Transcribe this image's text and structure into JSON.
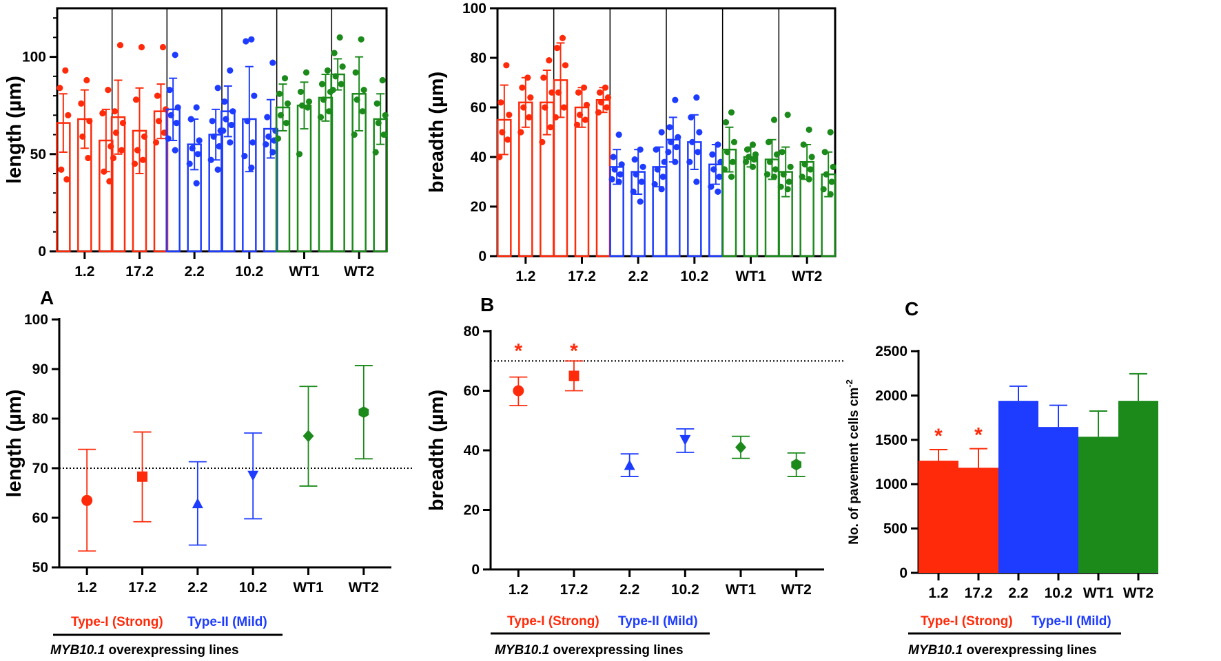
{
  "colors": {
    "type1": "#ff2a0a",
    "type2": "#1e3cff",
    "wt": "#1b8a1b",
    "axis": "#000000"
  },
  "categories": [
    "1.2",
    "17.2",
    "2.2",
    "10.2",
    "WT1",
    "WT2"
  ],
  "panel_labels": {
    "a": "A",
    "b": "B",
    "c": "C"
  },
  "legend": {
    "type1": "Type-I (Strong)",
    "type2": "Type-II (Mild)",
    "myb_gene": "MYB10.1",
    "myb_rest": " overexpressing lines"
  },
  "chart_data": [
    {
      "id": "top_length",
      "type": "bar",
      "ylabel": "length (µm)",
      "ylim": [
        0,
        125
      ],
      "yticks": [
        0,
        50,
        100
      ],
      "categories": [
        "1.2",
        "17.2",
        "2.2",
        "10.2",
        "WT1",
        "WT2"
      ],
      "groups": [
        {
          "color": "type1",
          "bars": [
            {
              "mean": 66,
              "sd": 15,
              "points": [
                93,
                84,
                70,
                42,
                37
              ]
            },
            {
              "mean": 68,
              "sd": 15,
              "points": [
                88,
                76,
                67,
                59,
                48
              ]
            },
            {
              "mean": 57,
              "sd": 16,
              "points": [
                83,
                71,
                54,
                41,
                36
              ]
            }
          ]
        },
        {
          "color": "type1",
          "bars": [
            {
              "mean": 69,
              "sd": 19,
              "points": [
                106,
                72,
                66,
                61,
                52,
                48
              ]
            },
            {
              "mean": 62,
              "sd": 22,
              "points": [
                105,
                78,
                59,
                52,
                47,
                45
              ]
            },
            {
              "mean": 72,
              "sd": 14,
              "points": [
                105,
                80,
                73,
                67,
                61,
                56
              ]
            }
          ]
        },
        {
          "color": "type2",
          "bars": [
            {
              "mean": 73,
              "sd": 16,
              "points": [
                101,
                83,
                74,
                70,
                66,
                58,
                52
              ]
            },
            {
              "mean": 55,
              "sd": 13,
              "points": [
                74,
                68,
                57,
                53,
                50,
                45,
                35
              ]
            },
            {
              "mean": 60,
              "sd": 13,
              "points": [
                84,
                67,
                62,
                59,
                54,
                47,
                42
              ]
            }
          ]
        },
        {
          "color": "type2",
          "bars": [
            {
              "mean": 72,
              "sd": 13,
              "points": [
                93,
                77,
                72,
                68,
                65,
                62,
                56
              ]
            },
            {
              "mean": 68,
              "sd": 27,
              "points": [
                109,
                108,
                80,
                67,
                56,
                49,
                43
              ]
            },
            {
              "mean": 63,
              "sd": 15,
              "points": [
                97,
                69,
                62,
                59,
                57,
                55,
                51
              ]
            }
          ]
        },
        {
          "color": "wt",
          "bars": [
            {
              "mean": 74,
              "sd": 12,
              "points": [
                89,
                81,
                76,
                70,
                66,
                58
              ]
            },
            {
              "mean": 75,
              "sd": 12,
              "points": [
                92,
                82,
                77,
                75,
                74,
                50
              ]
            },
            {
              "mean": 79,
              "sd": 12,
              "points": [
                93,
                86,
                82,
                78,
                72,
                69
              ]
            }
          ]
        },
        {
          "color": "wt",
          "bars": [
            {
              "mean": 91,
              "sd": 8,
              "points": [
                110,
                102,
                95,
                90,
                86,
                83
              ]
            },
            {
              "mean": 81,
              "sd": 19,
              "points": [
                109,
                92,
                83,
                78,
                72,
                60
              ]
            },
            {
              "mean": 68,
              "sd": 13,
              "points": [
                88,
                76,
                70,
                66,
                60,
                51
              ]
            }
          ]
        }
      ]
    },
    {
      "id": "top_breadth",
      "type": "bar",
      "ylabel": "breadth (µm)",
      "ylim": [
        0,
        100
      ],
      "yticks": [
        0,
        20,
        40,
        60,
        80,
        100
      ],
      "categories": [
        "1.2",
        "17.2",
        "2.2",
        "10.2",
        "WT1",
        "WT2"
      ],
      "groups": [
        {
          "color": "type1",
          "bars": [
            {
              "mean": 55,
              "sd": 14,
              "points": [
                77,
                62,
                57,
                50,
                47,
                40
              ]
            },
            {
              "mean": 62,
              "sd": 10,
              "points": [
                72,
                68,
                64,
                60,
                56,
                50
              ]
            },
            {
              "mean": 62,
              "sd": 13,
              "points": [
                79,
                72,
                66,
                60,
                52,
                46
              ]
            }
          ]
        },
        {
          "color": "type1",
          "bars": [
            {
              "mean": 71,
              "sd": 15,
              "points": [
                88,
                84,
                77,
                66,
                60,
                56
              ]
            },
            {
              "mean": 60,
              "sd": 8,
              "points": [
                68,
                66,
                61,
                57,
                55,
                53
              ]
            },
            {
              "mean": 63,
              "sd": 5,
              "points": [
                68,
                66,
                64,
                62,
                60,
                58
              ]
            }
          ]
        },
        {
          "color": "type2",
          "bars": [
            {
              "mean": 36,
              "sd": 7,
              "points": [
                49,
                40,
                37,
                35,
                33,
                31,
                30
              ]
            },
            {
              "mean": 34,
              "sd": 9,
              "points": [
                43,
                39,
                36,
                33,
                30,
                26,
                22
              ]
            },
            {
              "mean": 36,
              "sd": 8,
              "points": [
                50,
                43,
                38,
                35,
                32,
                29,
                27
              ]
            }
          ]
        },
        {
          "color": "type2",
          "bars": [
            {
              "mean": 47,
              "sd": 9,
              "points": [
                63,
                52,
                48,
                46,
                44,
                42,
                38
              ]
            },
            {
              "mean": 46,
              "sd": 11,
              "points": [
                64,
                56,
                50,
                46,
                42,
                38,
                30
              ]
            },
            {
              "mean": 37,
              "sd": 8,
              "points": [
                45,
                41,
                38,
                35,
                32,
                28,
                26
              ]
            }
          ]
        },
        {
          "color": "wt",
          "bars": [
            {
              "mean": 43,
              "sd": 9,
              "points": [
                58,
                54,
                46,
                42,
                38,
                35,
                32
              ]
            },
            {
              "mean": 40,
              "sd": 4,
              "points": [
                45,
                43,
                41,
                40,
                39,
                38,
                36
              ]
            },
            {
              "mean": 39,
              "sd": 8,
              "points": [
                55,
                46,
                41,
                38,
                35,
                33,
                32
              ]
            }
          ]
        },
        {
          "color": "wt",
          "bars": [
            {
              "mean": 34,
              "sd": 10,
              "points": [
                57,
                42,
                36,
                33,
                30,
                28,
                27
              ]
            },
            {
              "mean": 38,
              "sd": 7,
              "points": [
                51,
                45,
                40,
                37,
                35,
                32,
                31
              ]
            },
            {
              "mean": 33,
              "sd": 9,
              "points": [
                50,
                42,
                36,
                33,
                30,
                27,
                25
              ]
            }
          ]
        }
      ]
    },
    {
      "id": "a",
      "type": "scatter",
      "ylabel": "length (µm)",
      "ylim": [
        50,
        100
      ],
      "yticks": [
        50,
        60,
        70,
        80,
        90,
        100
      ],
      "reference_line": 70,
      "categories": [
        "1.2",
        "17.2",
        "2.2",
        "10.2",
        "WT1",
        "WT2"
      ],
      "points": [
        {
          "mean": 63.5,
          "lo": 53.3,
          "hi": 73.8,
          "marker": "circle",
          "color": "type1"
        },
        {
          "mean": 68.3,
          "lo": 59.2,
          "hi": 77.3,
          "marker": "square",
          "color": "type1"
        },
        {
          "mean": 62.9,
          "lo": 54.5,
          "hi": 71.3,
          "marker": "triangle-up",
          "color": "type2"
        },
        {
          "mean": 68.5,
          "lo": 59.8,
          "hi": 77.1,
          "marker": "triangle-down",
          "color": "type2"
        },
        {
          "mean": 76.5,
          "lo": 66.4,
          "hi": 86.5,
          "marker": "diamond",
          "color": "wt"
        },
        {
          "mean": 81.3,
          "lo": 71.9,
          "hi": 90.7,
          "marker": "hexagon",
          "color": "wt"
        }
      ]
    },
    {
      "id": "b",
      "type": "scatter",
      "ylabel": "breadth (µm)",
      "ylim": [
        0,
        80
      ],
      "yticks": [
        0,
        20,
        40,
        60,
        80
      ],
      "reference_line": 70,
      "categories": [
        "1.2",
        "17.2",
        "2.2",
        "10.2",
        "WT1",
        "WT2"
      ],
      "points": [
        {
          "mean": 60,
          "lo": 55,
          "hi": 64.6,
          "marker": "circle",
          "color": "type1",
          "sig": "*"
        },
        {
          "mean": 65,
          "lo": 60,
          "hi": 70,
          "marker": "square",
          "color": "type1",
          "sig": "*"
        },
        {
          "mean": 35,
          "lo": 31.2,
          "hi": 38.8,
          "marker": "triangle-up",
          "color": "type2"
        },
        {
          "mean": 43.5,
          "lo": 39.3,
          "hi": 47.2,
          "marker": "triangle-down",
          "color": "type2"
        },
        {
          "mean": 41,
          "lo": 37.3,
          "hi": 44.7,
          "marker": "diamond",
          "color": "wt"
        },
        {
          "mean": 35.2,
          "lo": 31.2,
          "hi": 39.1,
          "marker": "hexagon",
          "color": "wt"
        }
      ]
    },
    {
      "id": "c",
      "type": "bar",
      "ylabel": "No. of pavement cells cm",
      "ylabel_sup": "-2",
      "ylim": [
        0,
        2500
      ],
      "yticks": [
        0,
        500,
        1000,
        1500,
        2000,
        2500
      ],
      "categories": [
        "1.2",
        "17.2",
        "2.2",
        "10.2",
        "WT1",
        "WT2"
      ],
      "bars": [
        {
          "value": 1265,
          "err": 125,
          "color": "type1",
          "sig": "*"
        },
        {
          "value": 1185,
          "err": 215,
          "color": "type1",
          "sig": "*"
        },
        {
          "value": 1940,
          "err": 165,
          "color": "type2"
        },
        {
          "value": 1645,
          "err": 245,
          "color": "type2"
        },
        {
          "value": 1535,
          "err": 290,
          "color": "wt"
        },
        {
          "value": 1940,
          "err": 305,
          "color": "wt"
        }
      ]
    }
  ]
}
